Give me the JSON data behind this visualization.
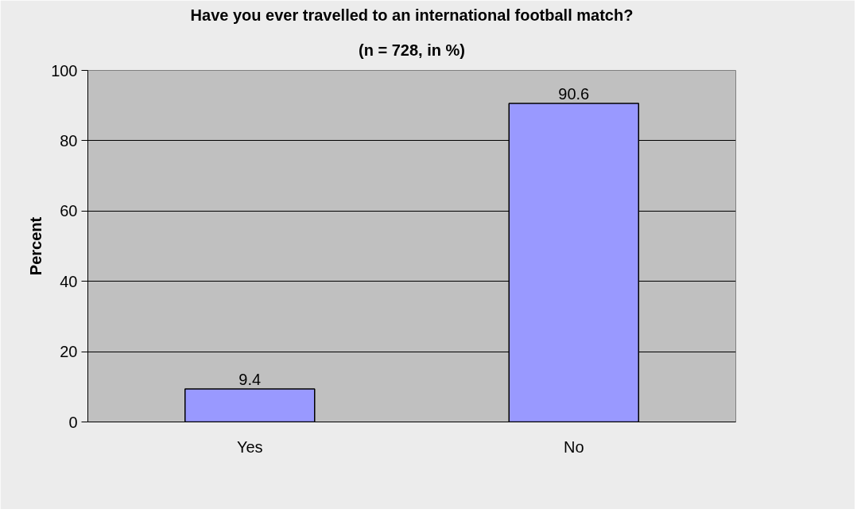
{
  "chart_data": {
    "type": "bar",
    "title": "Have you ever travelled to an international football match?",
    "subtitle": "(n = 728, in %)",
    "ylabel": "Percent",
    "categories": [
      "Yes",
      "No"
    ],
    "series": [
      {
        "color": "#9999ff",
        "values": [
          9.4,
          90.6
        ]
      }
    ],
    "ylim": [
      0,
      100
    ],
    "yticks": [
      0,
      20,
      40,
      60,
      80,
      100
    ],
    "grid": "y",
    "data_labels": true
  }
}
